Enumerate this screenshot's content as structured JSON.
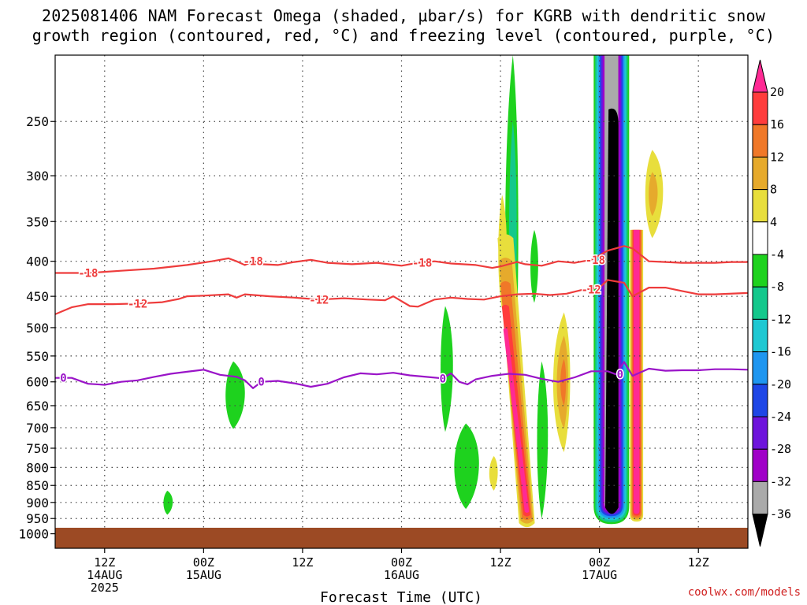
{
  "title": {
    "line1": "2025081406 NAM Forecast Omega (shaded, μbar/s) for KGRB with dendritic snow",
    "line2": "growth region (contoured, red, °C) and freezing level (contoured, purple, °C)"
  },
  "attribution": "coolwx.com/models",
  "chart_data": {
    "type": "heatmap",
    "title": "2025081406 NAM Forecast Omega (shaded, μbar/s) for KGRB with dendritic snow growth region (contoured, red, °C) and freezing level (contoured, purple, °C)",
    "xlabel": "Forecast Time (UTC)",
    "ylabel": "",
    "x_unit": "forecast hours from 2025-08-14 06Z",
    "xlim": [
      0,
      84
    ],
    "ylim": [
      1050,
      200
    ],
    "y_scale": "log-pressure",
    "y_ticks": [
      250,
      300,
      350,
      400,
      450,
      500,
      550,
      600,
      650,
      700,
      750,
      800,
      850,
      900,
      950,
      1000
    ],
    "x_ticks": [
      {
        "x": 6,
        "lines": [
          "12Z",
          "14AUG",
          "2025"
        ]
      },
      {
        "x": 18,
        "lines": [
          "00Z",
          "15AUG"
        ]
      },
      {
        "x": 30,
        "lines": [
          "12Z"
        ]
      },
      {
        "x": 42,
        "lines": [
          "00Z",
          "16AUG"
        ]
      },
      {
        "x": 54,
        "lines": [
          "12Z"
        ]
      },
      {
        "x": 66,
        "lines": [
          "00Z",
          "17AUG"
        ]
      },
      {
        "x": 78,
        "lines": [
          "12Z"
        ]
      }
    ],
    "grid": true,
    "ground": {
      "p_top": 980,
      "color": "#9c4a24"
    },
    "colorbar": {
      "labels": [
        "20",
        "16",
        "12",
        "8",
        "4",
        "-4",
        "-8",
        "-12",
        "-16",
        "-20",
        "-24",
        "-28",
        "-32",
        "-36"
      ],
      "colors": [
        "#ff2a94",
        "#ff3c3c",
        "#f07828",
        "#e6aa2c",
        "#e8de3c",
        "#ffffff",
        "#1ed21e",
        "#14c88c",
        "#1ec8d2",
        "#1e96f0",
        "#1e46e6",
        "#6e14dc",
        "#a000c8",
        "#aaaaaa",
        "#000000"
      ]
    },
    "contours": [
      {
        "label": "-18",
        "color": "#ee3c3c",
        "label_x": [
          4,
          24,
          44.5,
          65.5
        ],
        "points": [
          [
            0,
            416
          ],
          [
            4,
            416
          ],
          [
            8,
            413
          ],
          [
            12,
            410
          ],
          [
            16,
            405
          ],
          [
            19,
            400
          ],
          [
            21,
            396
          ],
          [
            22,
            400
          ],
          [
            23,
            405
          ],
          [
            24,
            400
          ],
          [
            25,
            404
          ],
          [
            27,
            405
          ],
          [
            29,
            401
          ],
          [
            31,
            398
          ],
          [
            33,
            402
          ],
          [
            36,
            404
          ],
          [
            39,
            402
          ],
          [
            42,
            406
          ],
          [
            44,
            402
          ],
          [
            46,
            400
          ],
          [
            48,
            403
          ],
          [
            51,
            405
          ],
          [
            53,
            409
          ],
          [
            54,
            407
          ],
          [
            56,
            401
          ],
          [
            57,
            404
          ],
          [
            59,
            406
          ],
          [
            61,
            400
          ],
          [
            63,
            402
          ],
          [
            65,
            398
          ],
          [
            67,
            386
          ],
          [
            69,
            380
          ],
          [
            70,
            383
          ],
          [
            72,
            400
          ],
          [
            74,
            401
          ],
          [
            76,
            402
          ],
          [
            78,
            402
          ],
          [
            80,
            402
          ],
          [
            82,
            401
          ],
          [
            84,
            401
          ]
        ]
      },
      {
        "label": "-12",
        "color": "#ee3c3c",
        "label_x": [
          10,
          32,
          65
        ],
        "points": [
          [
            0,
            478
          ],
          [
            2,
            467
          ],
          [
            4,
            462
          ],
          [
            7,
            462
          ],
          [
            10,
            461
          ],
          [
            13,
            459
          ],
          [
            15,
            454
          ],
          [
            16,
            450
          ],
          [
            18,
            449
          ],
          [
            21,
            447
          ],
          [
            22,
            452
          ],
          [
            23,
            447
          ],
          [
            26,
            450
          ],
          [
            29,
            452
          ],
          [
            32,
            455
          ],
          [
            35,
            453
          ],
          [
            38,
            455
          ],
          [
            40,
            456
          ],
          [
            41,
            450
          ],
          [
            43,
            465
          ],
          [
            44,
            466
          ],
          [
            46,
            455
          ],
          [
            48,
            452
          ],
          [
            50,
            454
          ],
          [
            52,
            455
          ],
          [
            54,
            450
          ],
          [
            56,
            447
          ],
          [
            58,
            446
          ],
          [
            60,
            448
          ],
          [
            62,
            446
          ],
          [
            64,
            440
          ],
          [
            66,
            437
          ],
          [
            67,
            426
          ],
          [
            69,
            430
          ],
          [
            70,
            450
          ],
          [
            72,
            437
          ],
          [
            74,
            437
          ],
          [
            76,
            442
          ],
          [
            78,
            447
          ],
          [
            80,
            447
          ],
          [
            84,
            445
          ]
        ]
      },
      {
        "label": "0",
        "color": "#9a14c8",
        "label_x": [
          1,
          25,
          47,
          68.5
        ],
        "points": [
          [
            0,
            592
          ],
          [
            2,
            592
          ],
          [
            4,
            604
          ],
          [
            6,
            606
          ],
          [
            8,
            600
          ],
          [
            10,
            597
          ],
          [
            12,
            590
          ],
          [
            14,
            584
          ],
          [
            16,
            580
          ],
          [
            18,
            576
          ],
          [
            20,
            586
          ],
          [
            22,
            590
          ],
          [
            23,
            597
          ],
          [
            24,
            613
          ],
          [
            25,
            600
          ],
          [
            27,
            598
          ],
          [
            29,
            603
          ],
          [
            31,
            610
          ],
          [
            33,
            604
          ],
          [
            35,
            591
          ],
          [
            37,
            583
          ],
          [
            39,
            585
          ],
          [
            41,
            582
          ],
          [
            43,
            587
          ],
          [
            45,
            590
          ],
          [
            47,
            593
          ],
          [
            48,
            583
          ],
          [
            49,
            600
          ],
          [
            50,
            605
          ],
          [
            51,
            595
          ],
          [
            53,
            588
          ],
          [
            55,
            584
          ],
          [
            57,
            586
          ],
          [
            59,
            594
          ],
          [
            61,
            600
          ],
          [
            63,
            591
          ],
          [
            65,
            579
          ],
          [
            67,
            579
          ],
          [
            68,
            585
          ],
          [
            69,
            561
          ],
          [
            70,
            588
          ],
          [
            72,
            574
          ],
          [
            74,
            578
          ],
          [
            76,
            577
          ],
          [
            78,
            577
          ],
          [
            80,
            575
          ],
          [
            82,
            575
          ],
          [
            84,
            576
          ]
        ]
      }
    ],
    "omega_regions": [
      {
        "shape": "blob",
        "x": [
          20.6,
          21.6,
          23.1
        ],
        "p": [
          560,
          703
        ],
        "bands": [
          [
            -8,
            "#1ed21e"
          ]
        ]
      },
      {
        "shape": "blob",
        "x": [
          13.1,
          13.6,
          14.3
        ],
        "p": [
          865,
          938
        ],
        "bands": [
          [
            -8,
            "#1ed21e"
          ]
        ]
      },
      {
        "shape": "blob",
        "x": [
          46.7,
          47.3,
          48.3
        ],
        "p": [
          465,
          710
        ],
        "bands": [
          [
            -8,
            "#1ed21e"
          ]
        ]
      },
      {
        "shape": "blob",
        "x": [
          48.3,
          49.8,
          51.5
        ],
        "p": [
          690,
          920
        ],
        "bands": [
          [
            -8,
            "#1ed21e"
          ]
        ]
      },
      {
        "shape": "blob",
        "x": [
          54.5,
          55.5,
          56.2
        ],
        "p": [
          200,
          700
        ],
        "bands": [
          [
            -8,
            "#1ed21e"
          ]
        ]
      },
      {
        "shape": "blob",
        "x": [
          55,
          55.5,
          56
        ],
        "p": [
          250,
          550
        ],
        "bands": [
          [
            -12,
            "#14c88c"
          ]
        ]
      },
      {
        "shape": "blob",
        "x": [
          58.4,
          59,
          59.8
        ],
        "p": [
          560,
          950
        ],
        "bands": [
          [
            -8,
            "#1ed21e"
          ]
        ]
      },
      {
        "shape": "blob",
        "x": [
          60.3,
          61.7,
          62.5
        ],
        "p": [
          475,
          760
        ],
        "bands": [
          [
            4,
            "#e8de3c"
          ],
          [
            8,
            "#e6aa2c"
          ],
          [
            12,
            "#f07828"
          ]
        ]
      },
      {
        "shape": "blob",
        "x": [
          53.7,
          54.2,
          54.8
        ],
        "p": [
          320,
          470
        ],
        "bands": [
          [
            4,
            "#e8de3c"
          ]
        ]
      },
      {
        "shape": "blob",
        "x": [
          52.6,
          53.2,
          53.7
        ],
        "p": [
          770,
          865
        ],
        "bands": [
          [
            4,
            "#e8de3c"
          ]
        ]
      },
      {
        "shape": "blob",
        "x": [
          57.6,
          58.1,
          58.6
        ],
        "p": [
          360,
          460
        ],
        "bands": [
          [
            -8,
            "#1ed21e"
          ]
        ]
      },
      {
        "shape": "slant",
        "x_top": 54.6,
        "x_bot": 57.2,
        "p": [
          370,
          965
        ],
        "bands": [
          [
            4,
            "#e8de3c"
          ],
          [
            8,
            "#e6aa2c"
          ],
          [
            12,
            "#f07828"
          ],
          [
            16,
            "#ff3c3c"
          ],
          [
            20,
            "#ff2a94"
          ]
        ]
      },
      {
        "shape": "column",
        "x": [
          65.3,
          69.6
        ],
        "p": [
          200,
          968
        ],
        "bands": [
          [
            -8,
            "#1ed21e"
          ],
          [
            -12,
            "#14c88c"
          ],
          [
            -16,
            "#1ec8d2"
          ],
          [
            -20,
            "#1e96f0"
          ],
          [
            -24,
            "#1e46e6"
          ],
          [
            -28,
            "#6e14dc"
          ],
          [
            -32,
            "#a000c8"
          ],
          [
            -36,
            "#aaaaaa"
          ]
        ],
        "core": {
          "x": [
            66.7,
            68.3
          ],
          "p": [
            240,
            940
          ],
          "color": "#000000"
        }
      },
      {
        "shape": "column",
        "x": [
          69.7,
          71.3
        ],
        "p": [
          360,
          960
        ],
        "bands": [
          [
            4,
            "#e8de3c"
          ],
          [
            8,
            "#e6aa2c"
          ],
          [
            12,
            "#f07828"
          ],
          [
            16,
            "#ff3c3c"
          ],
          [
            20,
            "#ff2a94"
          ]
        ]
      },
      {
        "shape": "blob",
        "x": [
          71.5,
          72.4,
          73.8
        ],
        "p": [
          275,
          370
        ],
        "bands": [
          [
            4,
            "#e8de3c"
          ],
          [
            8,
            "#e6aa2c"
          ]
        ]
      }
    ]
  }
}
